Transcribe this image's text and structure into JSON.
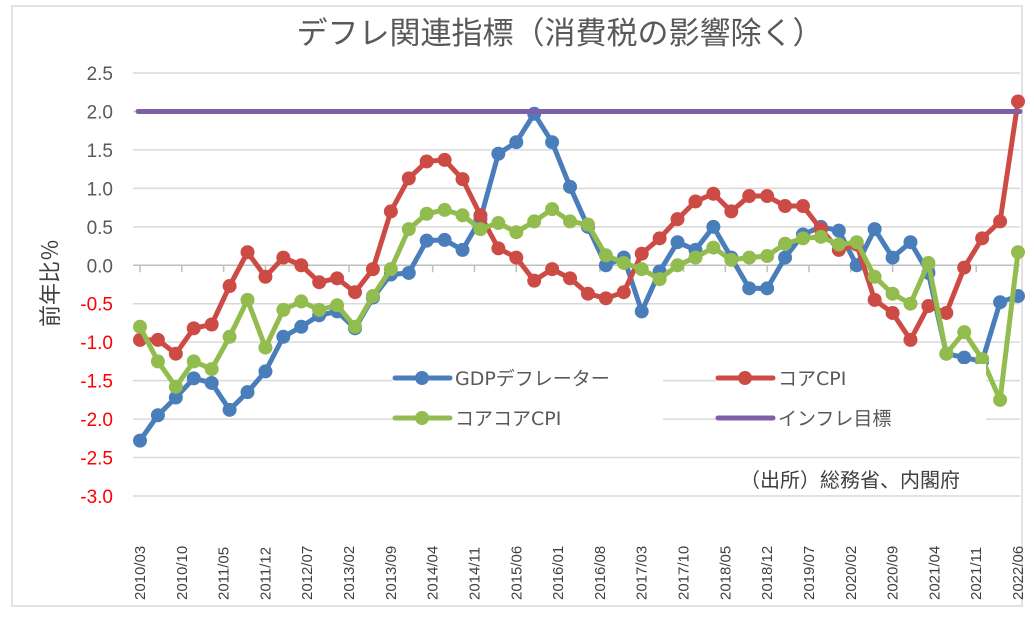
{
  "chart_data": {
    "type": "line",
    "title": "デフレ関連指標（消費税の影響除く）",
    "ylabel": "前年比％",
    "xlabel": "",
    "ylim": [
      -3.0,
      2.5
    ],
    "yticks": [
      "2.5",
      "2.0",
      "1.5",
      "1.0",
      "0.5",
      "0.0",
      "-0.5",
      "-1.0",
      "-1.5",
      "-2.0",
      "-2.5",
      "-3.0"
    ],
    "negative_tick_color": "#ff0000",
    "grid": true,
    "legend_position": "center-bottom",
    "x_start": "2010/03",
    "x_end": "2022/06",
    "x_frequency": "quarterly",
    "xtick_labels": [
      "2010/03",
      "2010/10",
      "2011/05",
      "2011/12",
      "2012/07",
      "2013/02",
      "2013/09",
      "2014/04",
      "2014/11",
      "2015/06",
      "2016/01",
      "2016/08",
      "2017/03",
      "2017/10",
      "2018/05",
      "2018/12",
      "2019/07",
      "2020/02",
      "2020/09",
      "2021/04",
      "2021/11",
      "2022/06"
    ],
    "annotation": "（出所）総務省、内閣府",
    "series": [
      {
        "name": "GDPデフレーター",
        "color": "#4a7ebb",
        "marker": true,
        "values": [
          -2.28,
          -1.95,
          -1.72,
          -1.47,
          -1.53,
          -1.88,
          -1.65,
          -1.38,
          -0.93,
          -0.8,
          -0.65,
          -0.6,
          -0.82,
          -0.42,
          -0.12,
          -0.1,
          0.32,
          0.33,
          0.2,
          0.6,
          1.45,
          1.6,
          1.97,
          1.6,
          1.02,
          0.5,
          0.0,
          0.1,
          -0.6,
          -0.08,
          0.3,
          0.2,
          0.5,
          0.1,
          -0.3,
          -0.3,
          0.1,
          0.4,
          0.5,
          0.45,
          0.0,
          0.47,
          0.1,
          0.3,
          -0.1,
          -1.15,
          -1.2,
          -1.25,
          -0.48,
          -0.4
        ]
      },
      {
        "name": "コアCPI",
        "color": "#cd4b45",
        "marker": true,
        "values": [
          -0.97,
          -0.97,
          -1.15,
          -0.82,
          -0.77,
          -0.27,
          0.17,
          -0.15,
          0.1,
          0.0,
          -0.22,
          -0.17,
          -0.35,
          -0.05,
          0.7,
          1.13,
          1.35,
          1.37,
          1.12,
          0.65,
          0.22,
          0.1,
          -0.2,
          -0.05,
          -0.17,
          -0.37,
          -0.43,
          -0.35,
          0.15,
          0.35,
          0.6,
          0.83,
          0.93,
          0.7,
          0.9,
          0.9,
          0.77,
          0.77,
          0.47,
          0.2,
          0.27,
          -0.45,
          -0.62,
          -0.97,
          -0.53,
          -0.62,
          -0.03,
          0.35,
          0.57,
          2.13
        ]
      },
      {
        "name": "コアコアCPI",
        "color": "#93bc4e",
        "marker": true,
        "values": [
          -0.8,
          -1.25,
          -1.58,
          -1.25,
          -1.35,
          -0.93,
          -0.45,
          -1.07,
          -0.58,
          -0.47,
          -0.58,
          -0.52,
          -0.8,
          -0.4,
          -0.05,
          0.47,
          0.67,
          0.72,
          0.65,
          0.47,
          0.55,
          0.43,
          0.57,
          0.73,
          0.57,
          0.53,
          0.13,
          0.03,
          -0.05,
          -0.18,
          0.0,
          0.1,
          0.23,
          0.07,
          0.1,
          0.12,
          0.28,
          0.35,
          0.37,
          0.27,
          0.3,
          -0.15,
          -0.37,
          -0.5,
          0.03,
          -1.15,
          -0.87,
          -1.22,
          -1.75,
          0.17
        ]
      },
      {
        "name": "インフレ目標",
        "color": "#7f5fa8",
        "marker": false,
        "values": [
          2.0,
          2.0
        ]
      }
    ]
  }
}
